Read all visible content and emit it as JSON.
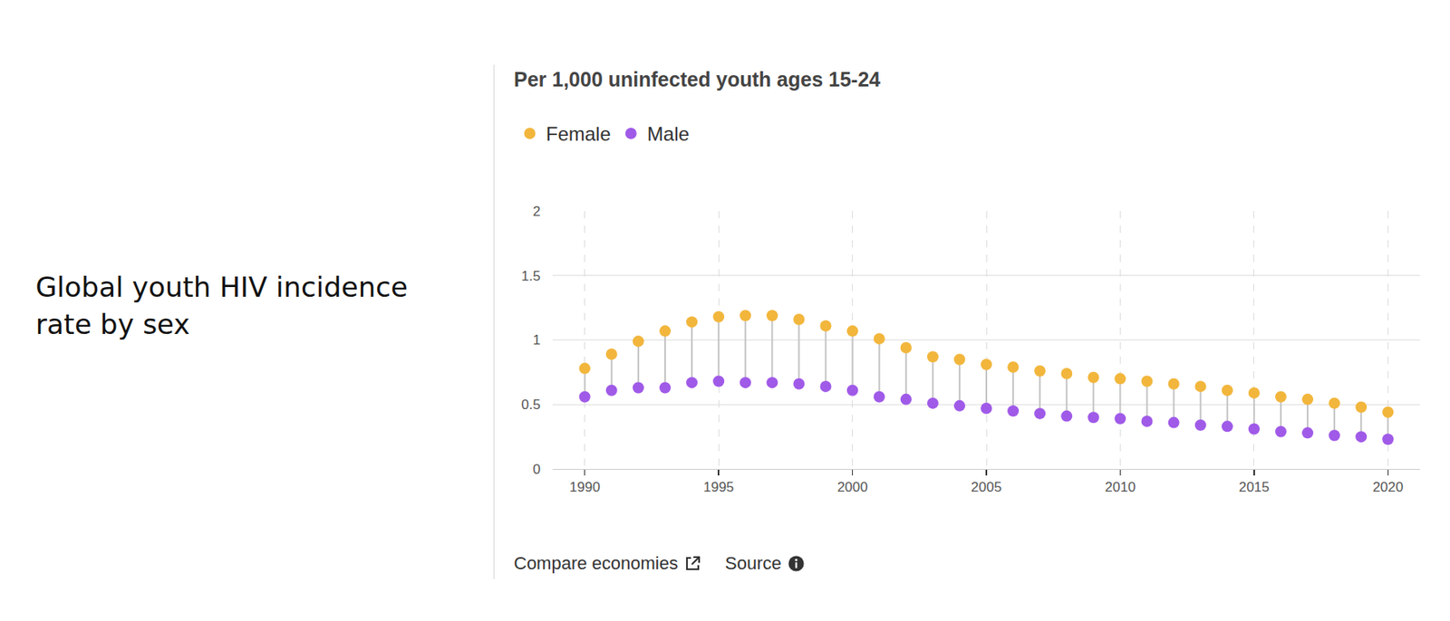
{
  "chart_data": {
    "type": "dumbbell",
    "title": "Global youth HIV incidence rate by sex",
    "subtitle": "Per 1,000 uninfected youth ages 15-24",
    "annotations": [
      "Compare economies",
      "Source"
    ],
    "x": [
      1990,
      1991,
      1992,
      1993,
      1994,
      1995,
      1996,
      1997,
      1998,
      1999,
      2000,
      2001,
      2002,
      2003,
      2004,
      2005,
      2006,
      2007,
      2008,
      2009,
      2010,
      2011,
      2012,
      2013,
      2014,
      2015,
      2016,
      2017,
      2018,
      2019,
      2020
    ],
    "series": [
      {
        "name": "Female",
        "color": "#f2b63c",
        "marker": "circle",
        "values": [
          0.78,
          0.89,
          0.99,
          1.07,
          1.14,
          1.18,
          1.19,
          1.19,
          1.16,
          1.11,
          1.07,
          1.01,
          0.94,
          0.87,
          0.85,
          0.81,
          0.79,
          0.76,
          0.74,
          0.71,
          0.7,
          0.68,
          0.66,
          0.64,
          0.61,
          0.59,
          0.56,
          0.54,
          0.51,
          0.48,
          0.44
        ]
      },
      {
        "name": "Male",
        "color": "#a05ae8",
        "marker": "circle",
        "values": [
          0.56,
          0.61,
          0.63,
          0.63,
          0.67,
          0.68,
          0.67,
          0.67,
          0.66,
          0.64,
          0.61,
          0.56,
          0.54,
          0.51,
          0.49,
          0.47,
          0.45,
          0.43,
          0.41,
          0.4,
          0.39,
          0.37,
          0.36,
          0.34,
          0.33,
          0.31,
          0.29,
          0.28,
          0.26,
          0.25,
          0.23
        ]
      }
    ],
    "xlim": [
      1988.8,
      2021.2
    ],
    "xticks": [
      1990,
      1995,
      2000,
      2005,
      2010,
      2015,
      2020
    ],
    "ylim": [
      0,
      2
    ],
    "yticks": [
      0,
      0.5,
      1,
      1.5,
      2
    ],
    "grid": true,
    "legend": "top left"
  }
}
